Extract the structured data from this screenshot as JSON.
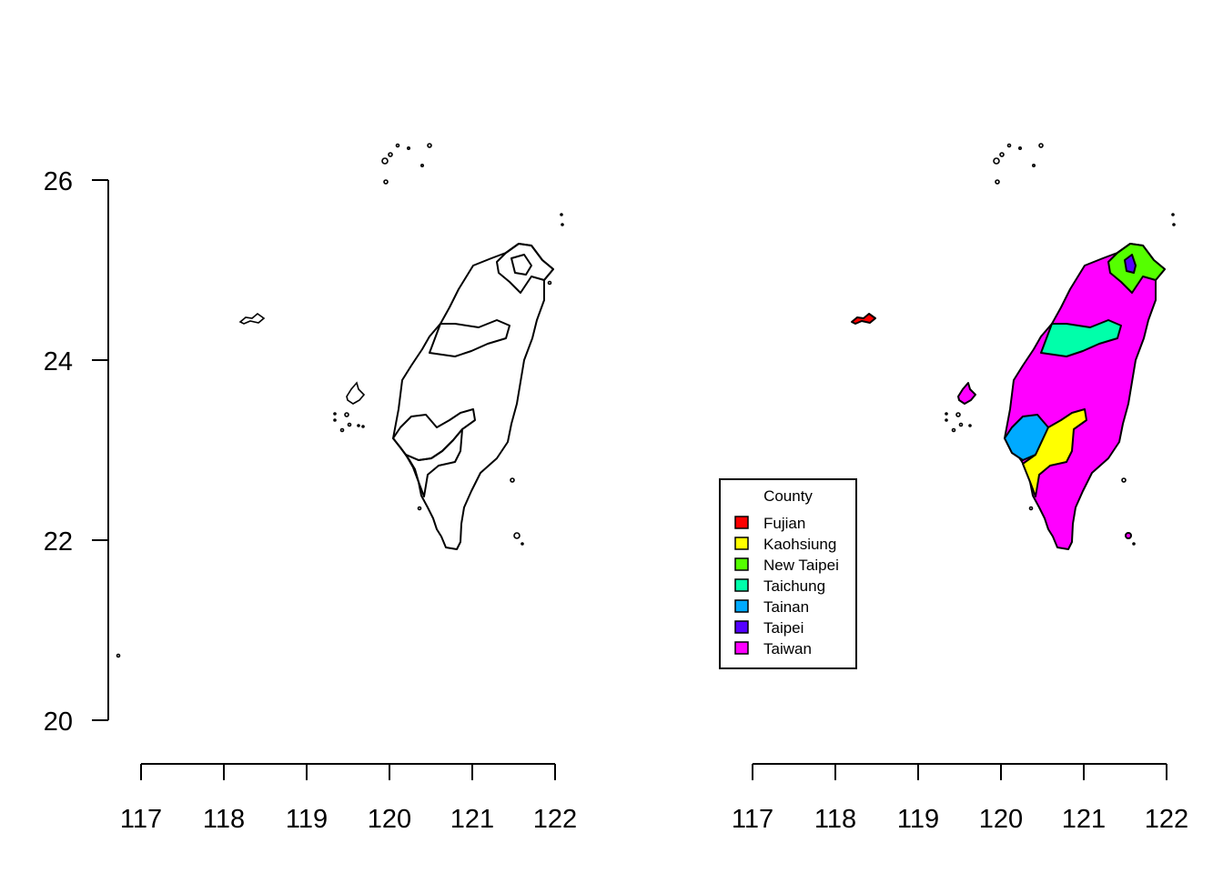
{
  "maps": {
    "y_ticks": [
      "26",
      "24",
      "22",
      "20"
    ],
    "x_ticks": [
      "117",
      "118",
      "119",
      "120",
      "121",
      "122"
    ]
  },
  "legend": {
    "title": "County",
    "items": [
      {
        "label": "Fujian",
        "color": "#ff0000"
      },
      {
        "label": "Kaohsiung",
        "color": "#ffff00"
      },
      {
        "label": "New Taipei",
        "color": "#55ff00"
      },
      {
        "label": "Taichung",
        "color": "#00ffaa"
      },
      {
        "label": "Tainan",
        "color": "#00aaff"
      },
      {
        "label": "Taipei",
        "color": "#5500ff"
      },
      {
        "label": "Taiwan",
        "color": "#ff00ff"
      }
    ]
  },
  "colors": {
    "background": "#ffffff",
    "outline": "#000000"
  }
}
